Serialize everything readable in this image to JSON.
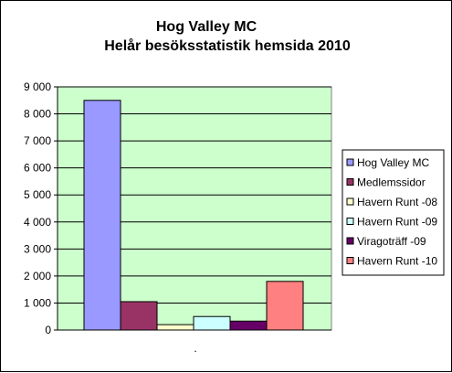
{
  "chart_data": {
    "type": "bar",
    "title": "Hog Valley MC",
    "subtitle": "Helår besöksstatistik hemsida 2010",
    "xlabel": "",
    "ylabel": "",
    "x_tick_label": ".",
    "ylim": [
      0,
      9000
    ],
    "yticks": [
      "0",
      "1 000",
      "2 000",
      "3 000",
      "4 000",
      "5 000",
      "6 000",
      "7 000",
      "8 000",
      "9 000"
    ],
    "grid": true,
    "legend_position": "right",
    "plot_background": "#ccffcc",
    "series": [
      {
        "name": "Hog Valley MC",
        "value": 8500,
        "color": "#9999ff"
      },
      {
        "name": "Medlemssidor",
        "value": 1050,
        "color": "#993366"
      },
      {
        "name": "Havern Runt -08",
        "value": 200,
        "color": "#ffffcc"
      },
      {
        "name": "Havern Runt -09",
        "value": 500,
        "color": "#ccffff"
      },
      {
        "name": "Viragoträff -09",
        "value": 330,
        "color": "#660066"
      },
      {
        "name": "Havern Runt -10",
        "value": 1800,
        "color": "#ff8080"
      }
    ]
  }
}
